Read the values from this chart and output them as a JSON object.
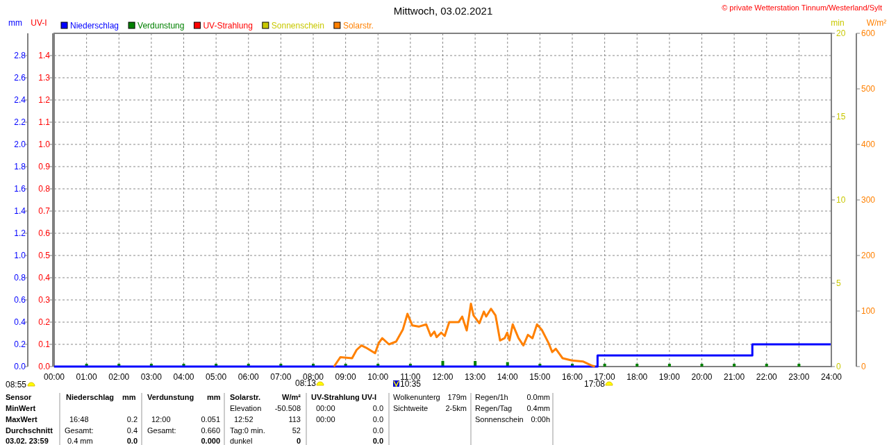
{
  "chart_data": [
    {
      "type": "step",
      "title": "Mittwoch, 03.02.2021",
      "xlim": [
        0,
        24
      ],
      "xticks": [
        {
          "value": 0,
          "label": "00:00"
        },
        {
          "value": 1,
          "label": "01:00"
        },
        {
          "value": 2,
          "label": "02:00"
        },
        {
          "value": 3,
          "label": "03:00"
        },
        {
          "value": 4,
          "label": "04:00"
        },
        {
          "value": 5,
          "label": "05:00"
        },
        {
          "value": 6,
          "label": "06:00"
        },
        {
          "value": 7,
          "label": "07:00"
        },
        {
          "value": 8,
          "label": "08:00"
        },
        {
          "value": 9,
          "label": "09:00"
        },
        {
          "value": 10,
          "label": "10:00"
        },
        {
          "value": 11,
          "label": "11:00"
        },
        {
          "value": 12,
          "label": "12:00"
        },
        {
          "value": 13,
          "label": "13:00"
        },
        {
          "value": 14,
          "label": "14:00"
        },
        {
          "value": 15,
          "label": "15:00"
        },
        {
          "value": 16,
          "label": "16:00"
        },
        {
          "value": 17,
          "label": "17:00"
        },
        {
          "value": 18,
          "label": "18:00"
        },
        {
          "value": 19,
          "label": "19:00"
        },
        {
          "value": 20,
          "label": "20:00"
        },
        {
          "value": 21,
          "label": "21:00"
        },
        {
          "value": 22,
          "label": "22:00"
        },
        {
          "value": 23,
          "label": "23:00"
        },
        {
          "value": 24,
          "label": "24:00"
        }
      ],
      "ylabel": "mm",
      "ylim": [
        0,
        3
      ],
      "yticks": [
        {
          "value": 0,
          "label": "0.0"
        },
        {
          "value": 0.2,
          "label": "0.2"
        },
        {
          "value": 0.4,
          "label": "0.4"
        },
        {
          "value": 0.6,
          "label": "0.6"
        },
        {
          "value": 0.8,
          "label": "0.8"
        },
        {
          "value": 1,
          "label": "1.0"
        },
        {
          "value": 1.2,
          "label": "1.2"
        },
        {
          "value": 1.4,
          "label": "1.4"
        },
        {
          "value": 1.6,
          "label": "1.6"
        },
        {
          "value": 1.8,
          "label": "1.8"
        },
        {
          "value": 2,
          "label": "2.0"
        },
        {
          "value": 2.2,
          "label": "2.2"
        },
        {
          "value": 2.4,
          "label": "2.4"
        },
        {
          "value": 2.6,
          "label": "2.6"
        },
        {
          "value": 2.8,
          "label": "2.8"
        }
      ],
      "y2label": "UV-I",
      "y2lim": [
        0,
        1.5
      ],
      "y2ticks": [
        {
          "value": 0,
          "label": "0.0"
        },
        {
          "value": 0.1,
          "label": "0.1"
        },
        {
          "value": 0.2,
          "label": "0.2"
        },
        {
          "value": 0.3,
          "label": "0.3"
        },
        {
          "value": 0.4,
          "label": "0.4"
        },
        {
          "value": 0.5,
          "label": "0.5"
        },
        {
          "value": 0.6,
          "label": "0.6"
        },
        {
          "value": 0.7,
          "label": "0.7"
        },
        {
          "value": 0.8,
          "label": "0.8"
        },
        {
          "value": 0.9,
          "label": "0.9"
        },
        {
          "value": 1,
          "label": "1.0"
        },
        {
          "value": 1.1,
          "label": "1.1"
        },
        {
          "value": 1.2,
          "label": "1.2"
        },
        {
          "value": 1.3,
          "label": "1.3"
        },
        {
          "value": 1.4,
          "label": "1.4"
        }
      ],
      "grid": true,
      "legend": "top left",
      "series": [
        {
          "name": "Niederschlag",
          "color": "#0000ff",
          "x": [
            0,
            16.78,
            21.56,
            24
          ],
          "values": [
            0,
            0.1,
            0.2,
            0.2
          ]
        },
        {
          "name": "Verdunstung",
          "type": "bar",
          "color": "#008000",
          "x": [
            1,
            2,
            3,
            4,
            5,
            6,
            7,
            8,
            9,
            10,
            11,
            12,
            13,
            14,
            15,
            16,
            17,
            18,
            19,
            20,
            21,
            22,
            23
          ],
          "values": [
            0.025,
            0.025,
            0.025,
            0.025,
            0.025,
            0.025,
            0.025,
            0.025,
            0.025,
            0.025,
            0.025,
            0.051,
            0.05,
            0.04,
            0.025,
            0.025,
            0.025,
            0.025,
            0.025,
            0.025,
            0.025,
            0.025,
            0.025
          ]
        },
        {
          "name": "UV-Strahlung",
          "type": "line",
          "color": "#ff0000",
          "axis": "y2"
        }
      ],
      "annotations": [
        "© private Wetterstation Tinnum/Westerland/Sylt",
        "08:55",
        "08:13",
        "10:35",
        "17:08",
        "Sensor",
        "MinWert",
        "MaxWert",
        "Durchschnitt",
        "03.02. 23:59",
        "Niederschlag",
        "mm",
        "16:48",
        "0.2",
        "Gesamt:",
        "0.4",
        "0.4 mm",
        "0.0",
        "Verdunstung",
        "mm",
        "12:00",
        "0.051",
        "Gesamt:",
        "0.660",
        "0.000",
        "Solarstr.",
        "W/m²",
        "Elevation",
        "-50.508",
        "12:52",
        "113",
        "Tag:0 min.",
        "52",
        "dunkel",
        "0",
        "UV-Strahlung UV-I",
        "00:00",
        "0.0",
        "00:00",
        "0.0",
        "0.0",
        "0.0",
        "Wolkenunterg",
        "179m",
        "Sichtweite",
        "2-5km",
        "Regen/1h",
        "0.0mm",
        "Regen/Tag",
        "0.4mm",
        "Sonnenschein",
        "0:00h"
      ]
    },
    {
      "type": "line",
      "xlim": [
        0,
        24
      ],
      "tick_labels": "y",
      "legend": "top left",
      "ylabel": "min",
      "ylim": [
        0,
        20
      ],
      "yticks": [
        0,
        5,
        10,
        15,
        20
      ],
      "y2label": "W/m²",
      "y2lim": [
        0,
        600
      ],
      "y2ticks": [
        0,
        100,
        200,
        300,
        400,
        500,
        600
      ],
      "series": [
        {
          "name": "Sonnenschein",
          "color": "#c8c800"
        },
        {
          "name": "Solarstr.",
          "color": "#ff8000",
          "axis": "y2",
          "x": [
            8.64,
            8.84,
            9.2,
            9.34,
            9.49,
            9.63,
            9.91,
            10.02,
            10.13,
            10.34,
            10.56,
            10.77,
            10.91,
            11.06,
            11.27,
            11.49,
            11.63,
            11.74,
            11.81,
            11.95,
            12.06,
            12.2,
            12.49,
            12.6,
            12.74,
            12.81,
            12.87,
            12.95,
            13.13,
            13.27,
            13.34,
            13.49,
            13.63,
            13.77,
            13.91,
            13.99,
            14.06,
            14.16,
            14.34,
            14.49,
            14.63,
            14.77,
            14.91,
            15.06,
            15.27,
            15.38,
            15.49,
            15.7,
            15.99,
            16.34,
            16.59,
            16.7
          ],
          "values": [
            0,
            17,
            15,
            30,
            38,
            34,
            24,
            42,
            51,
            40,
            45,
            67,
            95,
            74,
            72,
            76,
            55,
            63,
            53,
            61,
            55,
            80,
            80,
            90,
            65,
            90,
            113,
            92,
            78,
            99,
            90,
            104,
            92,
            47,
            51,
            61,
            47,
            76,
            51,
            38,
            57,
            51,
            76,
            66,
            42,
            26,
            32,
            15,
            11,
            9,
            2,
            0
          ]
        }
      ]
    }
  ]
}
